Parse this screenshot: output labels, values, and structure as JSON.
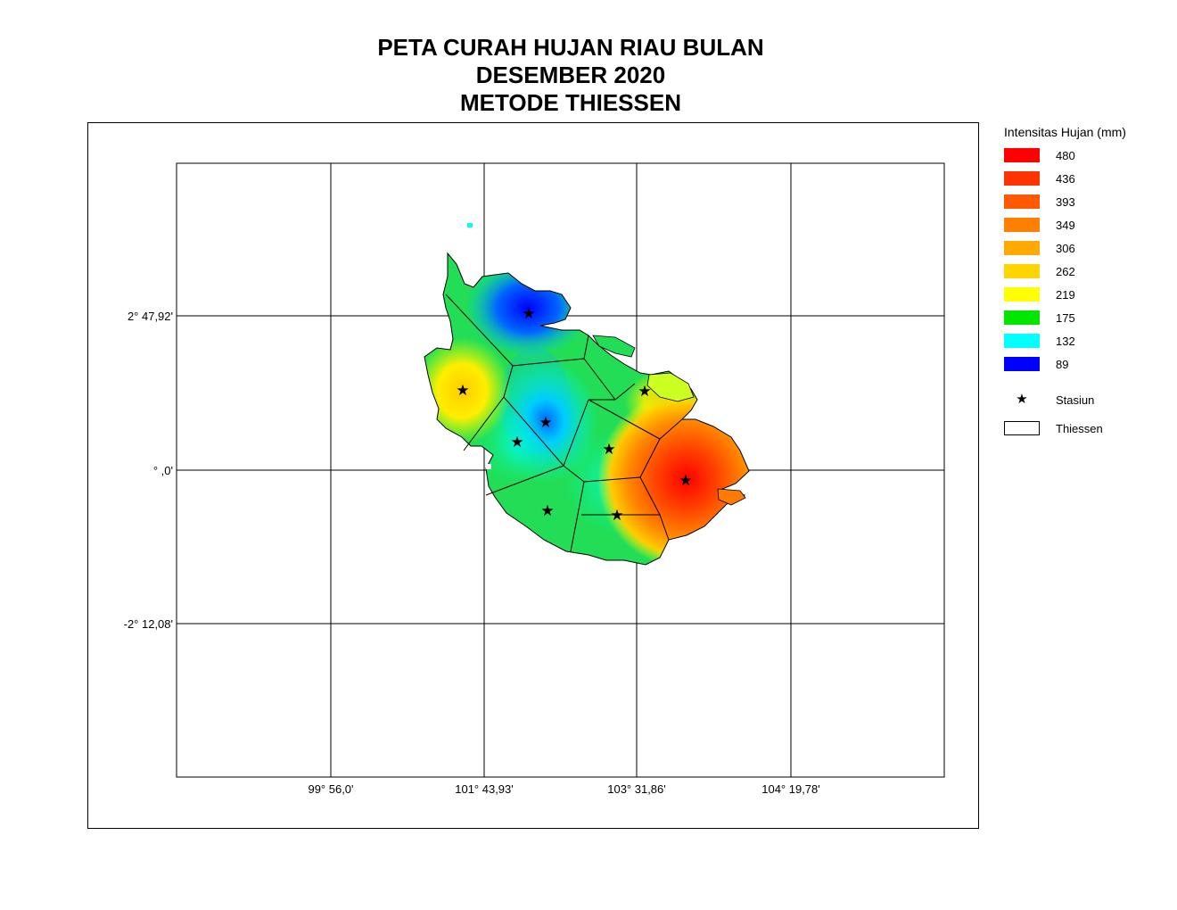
{
  "title": {
    "line1": "PETA CURAH HUJAN RIAU BULAN",
    "line2": "DESEMBER 2020",
    "line3": "METODE THIESSEN"
  },
  "axes": {
    "x_ticks": [
      "99° 56,0'",
      "101° 43,93'",
      "103° 31,86'",
      "104° 19,78'"
    ],
    "y_ticks": [
      "2° 47,92'",
      "° ,0'",
      "-2° 12,08'"
    ]
  },
  "legend": {
    "title": "Intensitas Hujan (mm)",
    "classes": [
      {
        "value": "480",
        "color": "#ff0000"
      },
      {
        "value": "436",
        "color": "#ff3300"
      },
      {
        "value": "393",
        "color": "#ff5a00"
      },
      {
        "value": "349",
        "color": "#ff8000"
      },
      {
        "value": "306",
        "color": "#ffaa00"
      },
      {
        "value": "262",
        "color": "#ffd500"
      },
      {
        "value": "219",
        "color": "#ffff00"
      },
      {
        "value": "175",
        "color": "#00e600"
      },
      {
        "value": "132",
        "color": "#00ffff"
      },
      {
        "value": "89",
        "color": "#0000ff"
      }
    ],
    "station_label": "Stasiun",
    "thiessen_label": "Thiessen"
  }
}
